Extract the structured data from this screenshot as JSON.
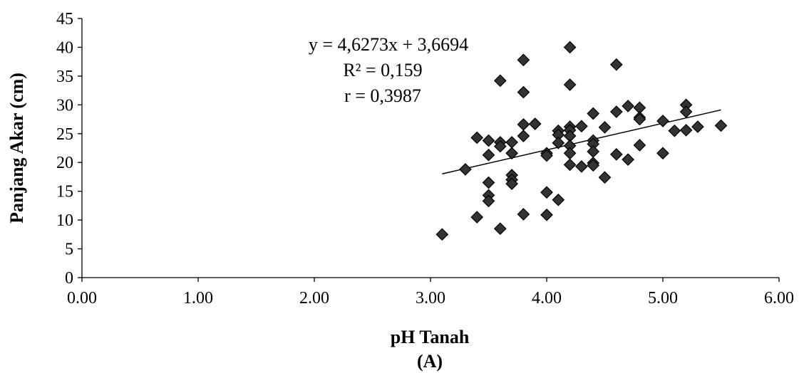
{
  "chart_data": {
    "type": "scatter",
    "title": "",
    "xlabel": "pH Tanah",
    "ylabel": "Panjang Akar (cm)",
    "caption": "(A)",
    "xlim": [
      0,
      6
    ],
    "ylim": [
      0,
      45
    ],
    "x_ticks": [
      "0.00",
      "1.00",
      "2.00",
      "3.00",
      "4.00",
      "5.00",
      "6.00"
    ],
    "y_ticks": [
      "0",
      "5",
      "10",
      "15",
      "20",
      "25",
      "30",
      "35",
      "40",
      "45"
    ],
    "grid": false,
    "legend": "none",
    "marker_color": "#333333",
    "trendline": {
      "slope": 4.6273,
      "intercept": 3.6694,
      "x_start": 3.1,
      "x_end": 5.5
    },
    "annotations": [
      "y = 4,6273x + 3,6694",
      "R² = 0,159",
      "r = 0,3987"
    ],
    "points": [
      {
        "x": 3.1,
        "y": 7.5
      },
      {
        "x": 3.3,
        "y": 18.8
      },
      {
        "x": 3.4,
        "y": 24.3
      },
      {
        "x": 3.4,
        "y": 10.5
      },
      {
        "x": 3.5,
        "y": 23.8
      },
      {
        "x": 3.5,
        "y": 21.3
      },
      {
        "x": 3.5,
        "y": 16.5
      },
      {
        "x": 3.5,
        "y": 14.3
      },
      {
        "x": 3.5,
        "y": 13.3
      },
      {
        "x": 3.6,
        "y": 34.2
      },
      {
        "x": 3.6,
        "y": 23.5
      },
      {
        "x": 3.6,
        "y": 22.8
      },
      {
        "x": 3.6,
        "y": 8.5
      },
      {
        "x": 3.7,
        "y": 23.5
      },
      {
        "x": 3.7,
        "y": 21.6
      },
      {
        "x": 3.7,
        "y": 17.8
      },
      {
        "x": 3.7,
        "y": 17.0
      },
      {
        "x": 3.7,
        "y": 16.3
      },
      {
        "x": 3.8,
        "y": 37.8
      },
      {
        "x": 3.8,
        "y": 32.2
      },
      {
        "x": 3.8,
        "y": 26.6
      },
      {
        "x": 3.8,
        "y": 24.6
      },
      {
        "x": 3.8,
        "y": 11.0
      },
      {
        "x": 3.9,
        "y": 26.7
      },
      {
        "x": 4.0,
        "y": 21.6
      },
      {
        "x": 4.0,
        "y": 21.2
      },
      {
        "x": 4.0,
        "y": 14.8
      },
      {
        "x": 4.0,
        "y": 10.9
      },
      {
        "x": 4.1,
        "y": 25.5
      },
      {
        "x": 4.1,
        "y": 24.8
      },
      {
        "x": 4.1,
        "y": 23.4
      },
      {
        "x": 4.1,
        "y": 13.5
      },
      {
        "x": 4.2,
        "y": 40.0
      },
      {
        "x": 4.2,
        "y": 33.5
      },
      {
        "x": 4.2,
        "y": 26.2
      },
      {
        "x": 4.2,
        "y": 25.6
      },
      {
        "x": 4.2,
        "y": 24.6
      },
      {
        "x": 4.2,
        "y": 22.9
      },
      {
        "x": 4.2,
        "y": 21.6
      },
      {
        "x": 4.2,
        "y": 19.6
      },
      {
        "x": 4.3,
        "y": 26.3
      },
      {
        "x": 4.3,
        "y": 19.3
      },
      {
        "x": 4.4,
        "y": 28.5
      },
      {
        "x": 4.4,
        "y": 23.8
      },
      {
        "x": 4.4,
        "y": 23.2
      },
      {
        "x": 4.4,
        "y": 21.9
      },
      {
        "x": 4.4,
        "y": 19.9
      },
      {
        "x": 4.4,
        "y": 19.5
      },
      {
        "x": 4.5,
        "y": 26.1
      },
      {
        "x": 4.5,
        "y": 17.4
      },
      {
        "x": 4.6,
        "y": 37.0
      },
      {
        "x": 4.6,
        "y": 28.8
      },
      {
        "x": 4.6,
        "y": 21.4
      },
      {
        "x": 4.7,
        "y": 29.8
      },
      {
        "x": 4.7,
        "y": 20.5
      },
      {
        "x": 4.8,
        "y": 29.5
      },
      {
        "x": 4.8,
        "y": 27.8
      },
      {
        "x": 4.8,
        "y": 27.5
      },
      {
        "x": 4.8,
        "y": 23.0
      },
      {
        "x": 5.0,
        "y": 27.2
      },
      {
        "x": 5.0,
        "y": 21.6
      },
      {
        "x": 5.1,
        "y": 25.5
      },
      {
        "x": 5.2,
        "y": 30.0
      },
      {
        "x": 5.2,
        "y": 28.8
      },
      {
        "x": 5.2,
        "y": 25.6
      },
      {
        "x": 5.3,
        "y": 26.2
      },
      {
        "x": 5.5,
        "y": 26.4
      }
    ]
  }
}
